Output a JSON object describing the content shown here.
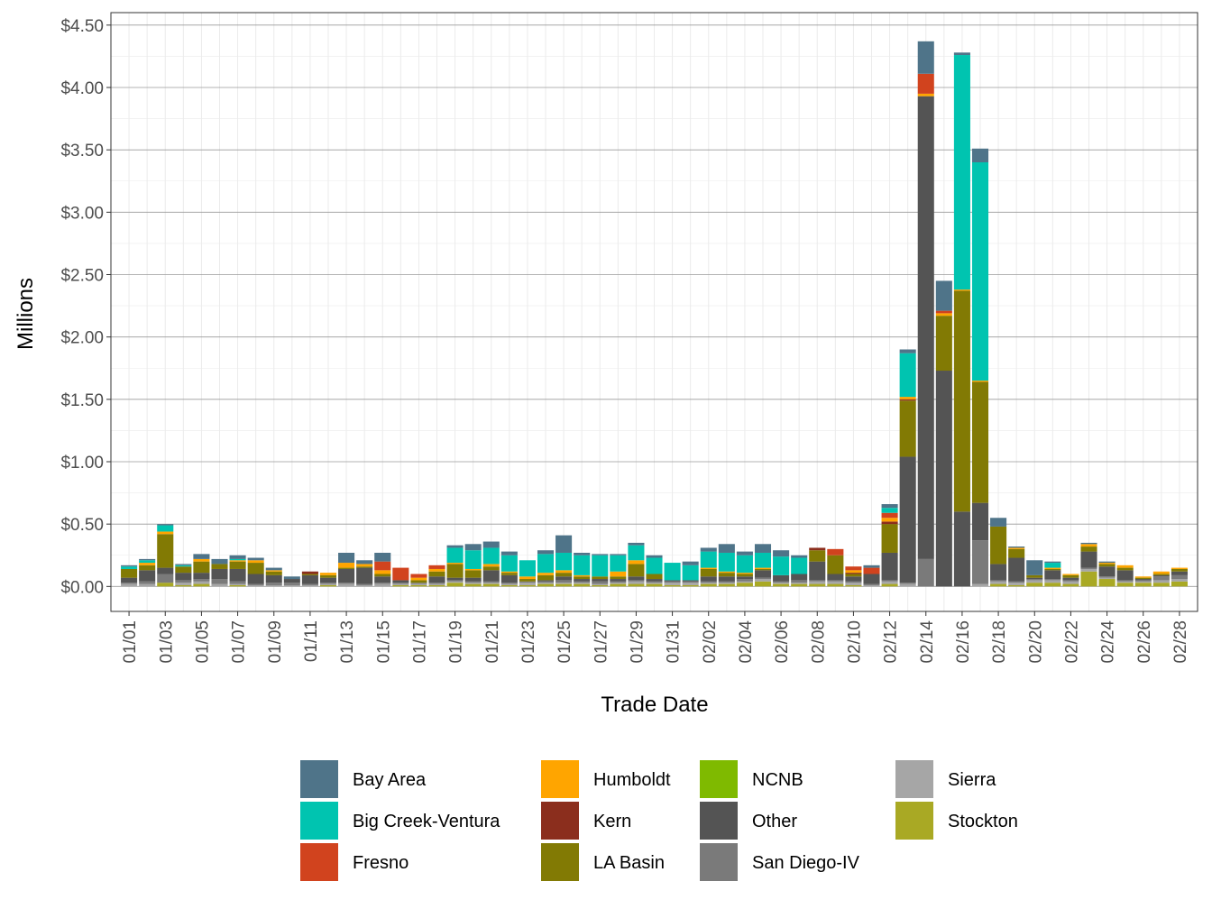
{
  "chart_data": {
    "type": "bar",
    "stacked": true,
    "title": "",
    "xlabel": "Trade Date",
    "ylabel": "Millions",
    "ylim": [
      -0.2,
      4.6
    ],
    "yticks": [
      0,
      0.5,
      1.0,
      1.5,
      2.0,
      2.5,
      3.0,
      3.5,
      4.0,
      4.5
    ],
    "ytick_labels": [
      "$0.00",
      "$0.50",
      "$1.00",
      "$1.50",
      "$2.00",
      "$2.50",
      "$3.00",
      "$3.50",
      "$4.00",
      "$4.50"
    ],
    "x_tick_labels": [
      "01/01",
      "01/03",
      "01/05",
      "01/07",
      "01/09",
      "01/11",
      "01/13",
      "01/15",
      "01/17",
      "01/19",
      "01/21",
      "01/23",
      "01/25",
      "01/27",
      "01/29",
      "01/31",
      "02/02",
      "02/04",
      "02/06",
      "02/08",
      "02/10",
      "02/12",
      "02/14",
      "02/16",
      "02/18",
      "02/20",
      "02/22",
      "02/24",
      "02/26",
      "02/28"
    ],
    "categories": [
      "01/01",
      "01/02",
      "01/03",
      "01/04",
      "01/05",
      "01/06",
      "01/07",
      "01/08",
      "01/09",
      "01/10",
      "01/11",
      "01/12",
      "01/13",
      "01/14",
      "01/15",
      "01/16",
      "01/17",
      "01/18",
      "01/19",
      "01/20",
      "01/21",
      "01/22",
      "01/23",
      "01/24",
      "01/25",
      "01/26",
      "01/27",
      "01/28",
      "01/29",
      "01/30",
      "01/31",
      "02/01",
      "02/02",
      "02/03",
      "02/04",
      "02/05",
      "02/06",
      "02/07",
      "02/08",
      "02/09",
      "02/10",
      "02/11",
      "02/12",
      "02/13",
      "02/14",
      "02/15",
      "02/16",
      "02/17",
      "02/18",
      "02/19",
      "02/20",
      "02/21",
      "02/22",
      "02/23",
      "02/24",
      "02/25",
      "02/26",
      "02/27",
      "02/28"
    ],
    "grid": true,
    "legend_position": "bottom",
    "series": [
      {
        "name": "Stockton",
        "color": "#A9A924",
        "values": [
          0,
          0,
          0.03,
          0.01,
          0.02,
          0,
          0.01,
          0,
          0,
          0,
          0,
          0.01,
          0,
          0,
          0,
          0.01,
          0.01,
          0.01,
          0.03,
          0.02,
          0.02,
          0.01,
          0.01,
          0.02,
          0.02,
          0.02,
          0.01,
          0.02,
          0.02,
          0.02,
          0.01,
          0.01,
          0.02,
          0.02,
          0.03,
          0.04,
          0.02,
          0.02,
          0.02,
          0.02,
          0.01,
          0,
          0.02,
          0,
          0,
          0,
          0,
          0,
          0.02,
          0.01,
          0.03,
          0.03,
          0.02,
          0.12,
          0.06,
          0.03,
          0.03,
          0.03,
          0.04
        ]
      },
      {
        "name": "Sierra",
        "color": "#A6A6A6",
        "values": [
          0.02,
          0.02,
          0,
          0.02,
          0.02,
          0.02,
          0.01,
          0.01,
          0.01,
          0.01,
          0.01,
          0.01,
          0.02,
          0.01,
          0.02,
          0.01,
          0.01,
          0.01,
          0.01,
          0.01,
          0.01,
          0.01,
          0.02,
          0.01,
          0.01,
          0.01,
          0.01,
          0.01,
          0.02,
          0.01,
          0.02,
          0.02,
          0.01,
          0.01,
          0.01,
          0.02,
          0.01,
          0.01,
          0.02,
          0.02,
          0.02,
          0.01,
          0.02,
          0.02,
          0,
          0,
          0,
          0.02,
          0.02,
          0.02,
          0.02,
          0.02,
          0.02,
          0.02,
          0.01,
          0.01,
          0.01,
          0.02,
          0.02
        ]
      },
      {
        "name": "San Diego-IV",
        "color": "#7A7A7A",
        "values": [
          0.01,
          0.02,
          0.07,
          0.02,
          0.02,
          0.04,
          0.02,
          0.01,
          0.02,
          0.02,
          0.01,
          0.01,
          0.01,
          0.01,
          0.01,
          0.01,
          0.01,
          0.01,
          0.01,
          0.01,
          0.01,
          0.01,
          0.01,
          0.01,
          0.02,
          0.01,
          0.02,
          0.01,
          0.01,
          0.01,
          0.01,
          0.01,
          0.01,
          0.01,
          0.02,
          0.01,
          0.01,
          0.02,
          0.01,
          0.01,
          0.01,
          0.01,
          0.01,
          0.01,
          0.22,
          0,
          0,
          0.35,
          0.01,
          0.01,
          0.01,
          0.01,
          0.01,
          0.01,
          0.01,
          0.01,
          0.01,
          0.03,
          0.03
        ]
      },
      {
        "name": "Other",
        "color": "#545454",
        "values": [
          0.04,
          0.09,
          0.05,
          0.06,
          0.05,
          0.08,
          0.1,
          0.08,
          0.06,
          0.03,
          0.07,
          0.04,
          0.11,
          0.13,
          0.05,
          0.02,
          0,
          0.05,
          0.02,
          0.03,
          0.09,
          0.06,
          0,
          0.01,
          0.03,
          0.02,
          0.02,
          0.02,
          0.03,
          0.02,
          0.01,
          0.01,
          0.04,
          0.04,
          0.02,
          0.06,
          0.05,
          0.05,
          0.15,
          0.05,
          0.04,
          0.08,
          0.22,
          1.01,
          3.71,
          1.73,
          0.6,
          0.3,
          0.13,
          0.19,
          0.01,
          0.07,
          0.02,
          0.13,
          0.08,
          0.08,
          0.01,
          0.01,
          0.03
        ]
      },
      {
        "name": "NCNB",
        "color": "#7FBA00",
        "values": [
          0,
          0,
          0,
          0,
          0,
          0,
          0,
          0,
          0,
          0,
          0,
          0,
          0,
          0,
          0,
          0,
          0,
          0,
          0,
          0,
          0,
          0,
          0,
          0,
          0,
          0,
          0,
          0,
          0,
          0,
          0,
          0,
          0,
          0,
          0,
          0,
          0,
          0,
          0,
          0,
          0,
          0,
          0,
          0,
          0,
          0,
          0,
          0,
          0,
          0,
          0,
          0,
          0,
          0,
          0,
          0,
          0,
          0,
          0
        ]
      },
      {
        "name": "LA Basin",
        "color": "#827A04",
        "values": [
          0.07,
          0.04,
          0.27,
          0.05,
          0.09,
          0.04,
          0.06,
          0.09,
          0.03,
          0,
          0.01,
          0.02,
          0.01,
          0.01,
          0.02,
          0,
          0.02,
          0.04,
          0.11,
          0.06,
          0.03,
          0.02,
          0.02,
          0.04,
          0.03,
          0.02,
          0.02,
          0.02,
          0.1,
          0.04,
          0,
          0,
          0.06,
          0.03,
          0.02,
          0.01,
          0,
          0,
          0.09,
          0.15,
          0.02,
          0,
          0.23,
          0.45,
          0,
          0.44,
          1.77,
          0.97,
          0.3,
          0.07,
          0.02,
          0.01,
          0.02,
          0.04,
          0.02,
          0.02,
          0.01,
          0.01,
          0.02
        ]
      },
      {
        "name": "Kern",
        "color": "#8B2E1D",
        "values": [
          0,
          0,
          0,
          0,
          0,
          0,
          0,
          0,
          0,
          0,
          0.02,
          0,
          0,
          0,
          0,
          0,
          0,
          0,
          0,
          0,
          0,
          0,
          0,
          0,
          0,
          0,
          0,
          0,
          0,
          0,
          0,
          0,
          0,
          0,
          0,
          0,
          0,
          0,
          0.02,
          0,
          0.01,
          0,
          0.02,
          0.01,
          0,
          0,
          0,
          0,
          0,
          0,
          0,
          0,
          0,
          0,
          0,
          0,
          0,
          0,
          0
        ]
      },
      {
        "name": "Humboldt",
        "color": "#FFA500",
        "values": [
          0,
          0.02,
          0.02,
          0,
          0.02,
          0,
          0.01,
          0.02,
          0.01,
          0,
          0,
          0.02,
          0.04,
          0.02,
          0.03,
          0,
          0.02,
          0.02,
          0.01,
          0.01,
          0.02,
          0.01,
          0.02,
          0.02,
          0.02,
          0.01,
          0,
          0.04,
          0.03,
          0,
          0,
          0,
          0.01,
          0.01,
          0.01,
          0.01,
          0,
          0,
          0,
          0,
          0.02,
          0,
          0.03,
          0.02,
          0.02,
          0.02,
          0.01,
          0.01,
          0,
          0.01,
          0,
          0.01,
          0.01,
          0.02,
          0.01,
          0.02,
          0.01,
          0.02,
          0.01
        ]
      },
      {
        "name": "Fresno",
        "color": "#D1431E",
        "values": [
          0,
          0,
          0,
          0,
          0,
          0,
          0,
          0,
          0,
          0,
          0,
          0,
          0,
          0,
          0.07,
          0.1,
          0.03,
          0.03,
          0,
          0,
          0,
          0,
          0,
          0,
          0,
          0,
          0,
          0,
          0,
          0,
          0,
          0,
          0,
          0,
          0,
          0,
          0,
          0,
          0,
          0.05,
          0.03,
          0.05,
          0.04,
          0,
          0.16,
          0.02,
          0,
          0,
          0,
          0,
          0,
          0,
          0,
          0,
          0,
          0,
          0,
          0,
          0
        ]
      },
      {
        "name": "Big Creek-Ventura",
        "color": "#00C4B0",
        "values": [
          0.02,
          0.02,
          0.05,
          0.01,
          0,
          0,
          0.01,
          0,
          0,
          0,
          0,
          0,
          0,
          0,
          0,
          0,
          0,
          0,
          0.12,
          0.15,
          0.13,
          0.13,
          0.13,
          0.15,
          0.14,
          0.16,
          0.17,
          0.13,
          0.12,
          0.13,
          0.14,
          0.12,
          0.13,
          0.15,
          0.14,
          0.12,
          0.15,
          0.13,
          0,
          0,
          0,
          0,
          0.04,
          0.35,
          0,
          0,
          1.88,
          1.75,
          0,
          0,
          0,
          0.04,
          0,
          0,
          0,
          0,
          0,
          0,
          0
        ]
      },
      {
        "name": "Bay Area",
        "color": "#4F7489",
        "values": [
          0.01,
          0.01,
          0.01,
          0.01,
          0.04,
          0.04,
          0.03,
          0.02,
          0.02,
          0.02,
          0,
          0,
          0.08,
          0.03,
          0.07,
          0,
          0,
          0,
          0.02,
          0.05,
          0.05,
          0.03,
          0,
          0.03,
          0.14,
          0.02,
          0.01,
          0.01,
          0.02,
          0.02,
          0,
          0.03,
          0.03,
          0.07,
          0.03,
          0.07,
          0.05,
          0.02,
          0,
          0,
          0,
          0.02,
          0.03,
          0.03,
          0.26,
          0.24,
          0.02,
          0.11,
          0.07,
          0.01,
          0.12,
          0.01,
          0,
          0.01,
          0.01,
          0,
          0,
          0,
          0
        ]
      }
    ]
  },
  "legend": {
    "items": [
      {
        "label": "Bay Area",
        "color": "#4F7489"
      },
      {
        "label": "Big Creek-Ventura",
        "color": "#00C4B0"
      },
      {
        "label": "Fresno",
        "color": "#D1431E"
      },
      {
        "label": "Humboldt",
        "color": "#FFA500"
      },
      {
        "label": "Kern",
        "color": "#8B2E1D"
      },
      {
        "label": "LA Basin",
        "color": "#827A04"
      },
      {
        "label": "NCNB",
        "color": "#7FBA00"
      },
      {
        "label": "Other",
        "color": "#545454"
      },
      {
        "label": "San Diego-IV",
        "color": "#7A7A7A"
      },
      {
        "label": "Sierra",
        "color": "#A6A6A6"
      },
      {
        "label": "Stockton",
        "color": "#A9A924"
      }
    ]
  }
}
